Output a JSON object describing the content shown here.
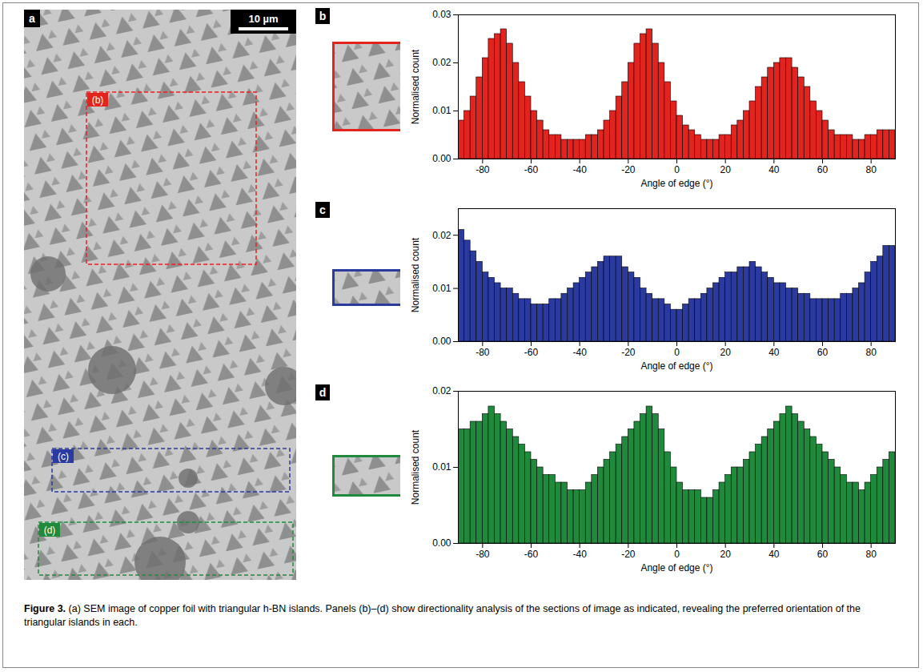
{
  "figure": {
    "panel_label": "a",
    "scale_bar": "10 µm",
    "regions": [
      "(b)",
      "(c)",
      "(d)"
    ],
    "caption_label": "Figure 3.",
    "caption": "(a) SEM image of copper foil with triangular h-BN islands. Panels (b)–(d) show directionality analysis of the sections of image as indicated, revealing the preferred orientation of the triangular islands in each."
  },
  "chart_data": [
    {
      "type": "histogram",
      "panel": "b",
      "color": "#e3231e",
      "xlabel": "Angle of edge (°)",
      "ylabel": "Normalised count",
      "bins": [
        -90,
        -87.5,
        -85,
        -82.5,
        -80,
        -77.5,
        -75,
        -72.5,
        -70,
        -67.5,
        -65,
        -62.5,
        -60,
        -57.5,
        -55,
        -52.5,
        -50,
        -47.5,
        -45,
        -42.5,
        -40,
        -37.5,
        -35,
        -32.5,
        -30,
        -27.5,
        -25,
        -22.5,
        -20,
        -17.5,
        -15,
        -12.5,
        -10,
        -7.5,
        -5,
        -2.5,
        0,
        2.5,
        5,
        7.5,
        10,
        12.5,
        15,
        17.5,
        20,
        22.5,
        25,
        27.5,
        30,
        32.5,
        35,
        37.5,
        40,
        42.5,
        45,
        47.5,
        50,
        52.5,
        55,
        57.5,
        60,
        62.5,
        65,
        67.5,
        70,
        72.5,
        75,
        77.5,
        80,
        82.5,
        85,
        87.5,
        90
      ],
      "values": [
        0.008,
        0.01,
        0.013,
        0.017,
        0.021,
        0.025,
        0.026,
        0.027,
        0.024,
        0.02,
        0.016,
        0.013,
        0.01,
        0.008,
        0.006,
        0.005,
        0.005,
        0.004,
        0.004,
        0.004,
        0.004,
        0.005,
        0.005,
        0.006,
        0.008,
        0.01,
        0.013,
        0.016,
        0.02,
        0.024,
        0.026,
        0.027,
        0.024,
        0.02,
        0.016,
        0.012,
        0.009,
        0.007,
        0.006,
        0.005,
        0.004,
        0.004,
        0.004,
        0.005,
        0.005,
        0.007,
        0.008,
        0.01,
        0.012,
        0.015,
        0.017,
        0.019,
        0.02,
        0.021,
        0.021,
        0.019,
        0.017,
        0.015,
        0.012,
        0.01,
        0.008,
        0.006,
        0.005,
        0.005,
        0.005,
        0.004,
        0.004,
        0.005,
        0.005,
        0.006,
        0.006,
        0.006
      ],
      "xlim": [
        -90,
        90
      ],
      "xticks": [
        -80,
        -60,
        -40,
        -20,
        0,
        20,
        40,
        60,
        80
      ],
      "ylim": [
        0,
        0.03
      ],
      "yticks": [
        {
          "value": 0,
          "label": "0.00"
        },
        {
          "value": 0.01,
          "label": "0.01"
        },
        {
          "value": 0.02,
          "label": "0.02"
        },
        {
          "value": 0.03,
          "label": "0.03"
        }
      ]
    },
    {
      "type": "histogram",
      "panel": "c",
      "color": "#2a3a9e",
      "xlabel": "Angle of edge (°)",
      "ylabel": "Normalised count",
      "bins": [
        -90,
        -87.5,
        -85,
        -82.5,
        -80,
        -77.5,
        -75,
        -72.5,
        -70,
        -67.5,
        -65,
        -62.5,
        -60,
        -57.5,
        -55,
        -52.5,
        -50,
        -47.5,
        -45,
        -42.5,
        -40,
        -37.5,
        -35,
        -32.5,
        -30,
        -27.5,
        -25,
        -22.5,
        -20,
        -17.5,
        -15,
        -12.5,
        -10,
        -7.5,
        -5,
        -2.5,
        0,
        2.5,
        5,
        7.5,
        10,
        12.5,
        15,
        17.5,
        20,
        22.5,
        25,
        27.5,
        30,
        32.5,
        35,
        37.5,
        40,
        42.5,
        45,
        47.5,
        50,
        52.5,
        55,
        57.5,
        60,
        62.5,
        65,
        67.5,
        70,
        72.5,
        75,
        77.5,
        80,
        82.5,
        85,
        87.5,
        90
      ],
      "values": [
        0.021,
        0.019,
        0.017,
        0.015,
        0.013,
        0.012,
        0.011,
        0.01,
        0.01,
        0.009,
        0.008,
        0.008,
        0.007,
        0.007,
        0.007,
        0.008,
        0.008,
        0.009,
        0.01,
        0.011,
        0.012,
        0.013,
        0.014,
        0.015,
        0.016,
        0.016,
        0.016,
        0.014,
        0.013,
        0.012,
        0.01,
        0.009,
        0.008,
        0.008,
        0.007,
        0.006,
        0.006,
        0.007,
        0.008,
        0.008,
        0.009,
        0.01,
        0.011,
        0.012,
        0.013,
        0.013,
        0.014,
        0.014,
        0.015,
        0.014,
        0.013,
        0.012,
        0.011,
        0.011,
        0.01,
        0.01,
        0.009,
        0.009,
        0.008,
        0.008,
        0.008,
        0.008,
        0.008,
        0.009,
        0.009,
        0.01,
        0.011,
        0.013,
        0.015,
        0.016,
        0.018,
        0.018
      ],
      "xlim": [
        -90,
        90
      ],
      "xticks": [
        -80,
        -60,
        -40,
        -20,
        0,
        20,
        40,
        60,
        80
      ],
      "ylim": [
        0,
        0.025
      ],
      "yticks": [
        {
          "value": 0,
          "label": "0.00"
        },
        {
          "value": 0.01,
          "label": "0.01"
        },
        {
          "value": 0.02,
          "label": "0.02"
        }
      ]
    },
    {
      "type": "histogram",
      "panel": "d",
      "color": "#1f8a3b",
      "xlabel": "Angle of edge (°)",
      "ylabel": "Normalised count",
      "bins": [
        -90,
        -87.5,
        -85,
        -82.5,
        -80,
        -77.5,
        -75,
        -72.5,
        -70,
        -67.5,
        -65,
        -62.5,
        -60,
        -57.5,
        -55,
        -52.5,
        -50,
        -47.5,
        -45,
        -42.5,
        -40,
        -37.5,
        -35,
        -32.5,
        -30,
        -27.5,
        -25,
        -22.5,
        -20,
        -17.5,
        -15,
        -12.5,
        -10,
        -7.5,
        -5,
        -2.5,
        0,
        2.5,
        5,
        7.5,
        10,
        12.5,
        15,
        17.5,
        20,
        22.5,
        25,
        27.5,
        30,
        32.5,
        35,
        37.5,
        40,
        42.5,
        45,
        47.5,
        50,
        52.5,
        55,
        57.5,
        60,
        62.5,
        65,
        67.5,
        70,
        72.5,
        75,
        77.5,
        80,
        82.5,
        85,
        87.5,
        90
      ],
      "values": [
        0.015,
        0.015,
        0.016,
        0.016,
        0.017,
        0.018,
        0.017,
        0.016,
        0.015,
        0.014,
        0.013,
        0.012,
        0.011,
        0.01,
        0.009,
        0.009,
        0.008,
        0.008,
        0.007,
        0.007,
        0.007,
        0.008,
        0.009,
        0.01,
        0.011,
        0.012,
        0.013,
        0.014,
        0.015,
        0.016,
        0.017,
        0.018,
        0.017,
        0.015,
        0.012,
        0.01,
        0.008,
        0.007,
        0.007,
        0.007,
        0.006,
        0.006,
        0.007,
        0.008,
        0.009,
        0.01,
        0.01,
        0.011,
        0.012,
        0.013,
        0.014,
        0.015,
        0.016,
        0.017,
        0.018,
        0.017,
        0.016,
        0.015,
        0.014,
        0.013,
        0.012,
        0.011,
        0.01,
        0.009,
        0.008,
        0.008,
        0.007,
        0.008,
        0.009,
        0.01,
        0.011,
        0.012
      ],
      "xlim": [
        -90,
        90
      ],
      "xticks": [
        -80,
        -60,
        -40,
        -20,
        0,
        20,
        40,
        60,
        80
      ],
      "ylim": [
        0,
        0.02
      ],
      "yticks": [
        {
          "value": 0,
          "label": "0.00"
        },
        {
          "value": 0.01,
          "label": "0.01"
        },
        {
          "value": 0.02,
          "label": "0.02"
        }
      ]
    }
  ]
}
